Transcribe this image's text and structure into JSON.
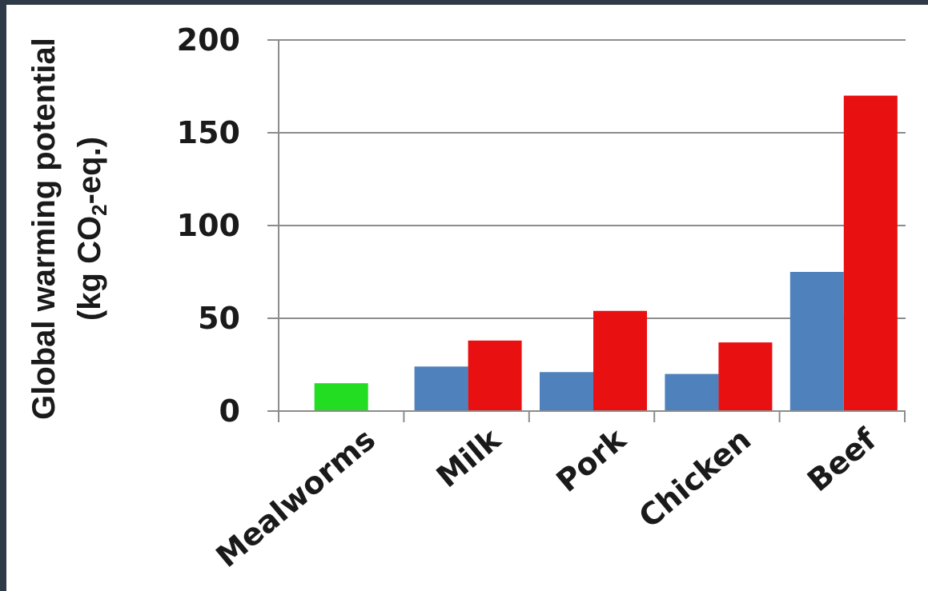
{
  "chart_data": {
    "type": "bar",
    "title": "",
    "categories": [
      "Mealworms",
      "Milk",
      "Pork",
      "Chicken",
      "Beef"
    ],
    "series": [
      {
        "values": [
          15,
          24,
          21,
          20,
          75
        ],
        "color": "#4f81bd"
      },
      {
        "values": [
          null,
          38,
          54,
          37,
          170
        ],
        "color": "#e81010"
      }
    ],
    "highlight": {
      "category": "Mealworms",
      "color": "#22dd22"
    },
    "ylabel_line1": "Global warming potential",
    "ylabel_line2_pre": "(kg CO",
    "ylabel_line2_sub": "2",
    "ylabel_line2_post": "-eq.)",
    "ylim": [
      0,
      200
    ],
    "yticks": [
      "0",
      "50",
      "100",
      "150",
      "200"
    ],
    "grid": true
  }
}
